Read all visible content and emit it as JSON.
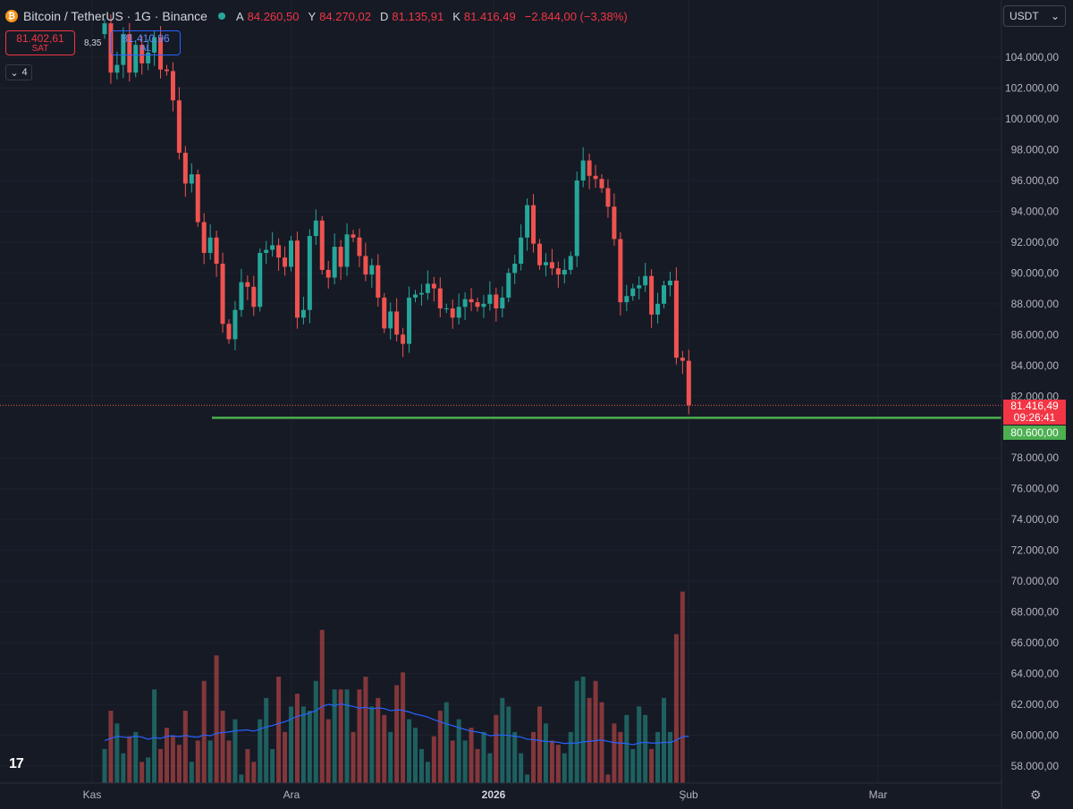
{
  "header": {
    "logo_glyph": "₿",
    "title": "Bitcoin / TetherUS · 1G · Binance",
    "ohlc": [
      {
        "key": "A",
        "value": "84.260,50"
      },
      {
        "key": "Y",
        "value": "84.270,02"
      },
      {
        "key": "D",
        "value": "81.135,91"
      },
      {
        "key": "K",
        "value": "81.416,49"
      },
      {
        "key": "",
        "value": "−2.844,00 (−3,38%)"
      }
    ]
  },
  "trade": {
    "sell_price": "81.402,61",
    "sell_label": "SAT",
    "spread": "8,35",
    "buy_price": "81.410,96",
    "buy_label": "AL"
  },
  "indicators_collapsed_count": "4",
  "currency": "USDT",
  "price_tags": {
    "last_price": "81.416,49",
    "countdown": "09:26:41",
    "line_price": "80.600,00"
  },
  "colors": {
    "up": "#26a69a",
    "down": "#ef5350",
    "hline": "#4caf50",
    "ma": "#2962ff"
  },
  "tv_logo": "17",
  "chart_data": {
    "type": "candlestick",
    "y_axis_ticks": [
      "104.000,00",
      "102.000,00",
      "100.000,00",
      "98.000,00",
      "96.000,00",
      "94.000,00",
      "92.000,00",
      "90.000,00",
      "88.000,00",
      "86.000,00",
      "84.000,00",
      "82.000,00",
      "78.000,00",
      "76.000,00",
      "74.000,00",
      "72.000,00",
      "70.000,00",
      "68.000,00",
      "66.000,00",
      "64.000,00",
      "62.000,00",
      "60.000,00",
      "58.000,00"
    ],
    "x_axis_ticks": [
      {
        "label": "Kas",
        "bold": false
      },
      {
        "label": "Ara",
        "bold": false
      },
      {
        "label": "2026",
        "bold": true
      },
      {
        "label": "Şub",
        "bold": false
      },
      {
        "label": "Mar",
        "bold": false
      }
    ],
    "horizontal_line": 80600,
    "last_close": 81416.49,
    "closes": [
      106200,
      103000,
      103500,
      105500,
      103000,
      104800,
      103600,
      104300,
      105300,
      103200,
      103100,
      101200,
      97800,
      95800,
      96400,
      93300,
      91300,
      92300,
      90600,
      86700,
      85700,
      87600,
      89400,
      89100,
      87800,
      91300,
      91500,
      91800,
      91000,
      90400,
      92100,
      87100,
      87600,
      92400,
      93400,
      90200,
      89700,
      91700,
      90400,
      92500,
      92300,
      91100,
      89900,
      90500,
      88400,
      86400,
      87500,
      86000,
      85400,
      88400,
      88600,
      88700,
      89300,
      89000,
      87700,
      87700,
      87100,
      87800,
      88300,
      88100,
      87800,
      88000,
      88600,
      87700,
      88400,
      90000,
      90600,
      92300,
      94400,
      91900,
      90500,
      90700,
      90300,
      89900,
      90200,
      91100,
      96000,
      97300,
      96300,
      96100,
      95500,
      94300,
      92200,
      88100,
      88500,
      89000,
      89200,
      89800,
      87300,
      88000,
      89200,
      89500,
      84500,
      84300,
      81416
    ]
  },
  "volume_data": {
    "values": [
      58,
      67,
      64,
      57,
      61,
      62,
      55,
      56,
      72,
      58,
      63,
      61,
      59,
      67,
      55,
      60,
      74,
      60,
      80,
      67,
      60,
      65,
      52,
      58,
      55,
      65,
      70,
      58,
      75,
      62,
      68,
      71,
      68,
      67,
      74,
      86,
      65,
      72,
      72,
      72,
      62,
      72,
      75,
      68,
      70,
      66,
      62,
      73,
      76,
      65,
      63,
      58,
      55,
      61,
      67,
      69,
      60,
      65,
      60,
      63,
      58,
      62,
      57,
      66,
      70,
      68,
      62,
      57,
      52,
      62,
      68,
      64,
      60,
      59,
      57,
      62,
      74,
      75,
      70,
      74,
      69,
      52,
      64,
      62,
      66,
      58,
      68,
      66,
      58,
      62,
      70,
      62,
      85,
      95,
      50
    ],
    "ma": [
      60,
      60.5,
      61,
      60.8,
      60.7,
      61,
      60.8,
      60.3,
      60.7,
      60.5,
      61,
      61.1,
      60.9,
      61.2,
      60.9,
      60.8,
      61.3,
      61.1,
      61.7,
      61.9,
      62,
      62.3,
      62.4,
      62.5,
      62.2,
      62.7,
      63.2,
      63.5,
      64,
      64.4,
      65,
      65.7,
      66,
      66.5,
      67,
      68,
      68.5,
      68.2,
      68.6,
      68.3,
      68,
      67.6,
      67.8,
      67.4,
      67.7,
      67.5,
      67,
      67.2,
      67.1,
      66.7,
      66.2,
      65.9,
      65.5,
      64.9,
      64.4,
      63.9,
      63.5,
      63,
      62.6,
      62.2,
      62,
      61.7,
      61.1,
      61.3,
      61.3,
      61.2,
      61,
      60.8,
      60.3,
      60.2,
      60,
      59.8,
      59.7,
      59.6,
      59.3,
      59.4,
      59.4,
      59.7,
      59.8,
      60,
      60.1,
      59.8,
      59.5,
      59.4,
      59.3,
      59,
      59.4,
      59.6,
      59.4,
      59.4,
      59.6,
      59.5,
      60.1,
      60.9,
      61
    ]
  }
}
